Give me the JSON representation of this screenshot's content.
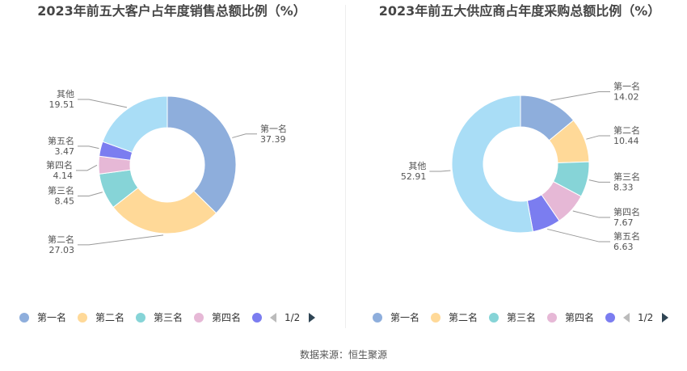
{
  "source_text": "数据来源：恒生聚源",
  "colors": {
    "palette": [
      "#8eaedc",
      "#ffd998",
      "#86d4d7",
      "#e6b8d6",
      "#7b7df0",
      "#a9ddf6"
    ],
    "label_line": "#999999",
    "label_text": "#555555"
  },
  "chart_data": [
    {
      "type": "pie",
      "title": "2023年前五大客户占年度销售总额比例（%）",
      "categories": [
        "第一名",
        "第二名",
        "第三名",
        "第四名",
        "第五名",
        "其他"
      ],
      "values": [
        37.39,
        27.03,
        8.45,
        4.14,
        3.47,
        19.51
      ],
      "value_labels": [
        "37.39",
        "27.03",
        "8.45",
        "4.14",
        "3.47",
        "19.51"
      ],
      "legend": {
        "visible_items": [
          "第一名",
          "第二名",
          "第三名",
          "第四名"
        ],
        "page": "1/2",
        "position": "bottom"
      }
    },
    {
      "type": "pie",
      "title": "2023年前五大供应商占年度采购总额比例（%）",
      "categories": [
        "第一名",
        "第二名",
        "第三名",
        "第四名",
        "第五名",
        "其他"
      ],
      "values": [
        14.02,
        10.44,
        8.33,
        7.67,
        6.63,
        52.91
      ],
      "value_labels": [
        "14.02",
        "10.44",
        "8.33",
        "7.67",
        "6.63",
        "52.91"
      ],
      "legend": {
        "visible_items": [
          "第一名",
          "第二名",
          "第三名",
          "第四名"
        ],
        "page": "1/2",
        "position": "bottom"
      }
    }
  ]
}
